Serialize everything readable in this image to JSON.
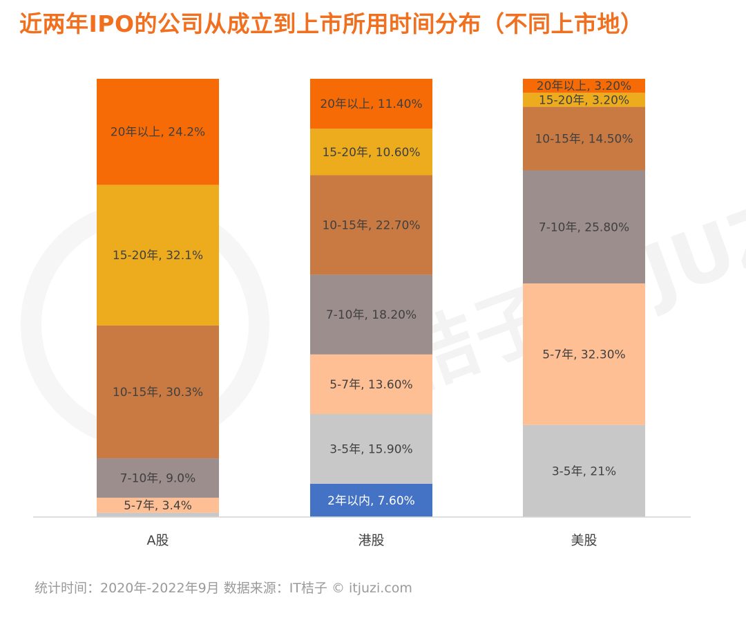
{
  "title": "近两年IPO的公司从成立到上市所用时间分布（不同上市地）",
  "footer": "统计时间：2020年-2022年9月    数据来源：IT桔子 © itjuzi.com",
  "watermark_text": "IT桔子 ITJUZI.COM",
  "colors": {
    "title": "#f07020",
    "lt2": "#4472c4",
    "3to5": "#c8c8c8",
    "5to7": "#ffbf94",
    "7to10": "#9c8e8c",
    "10to15": "#c97a42",
    "15to20": "#ecac1e",
    "gt20": "#f76b06"
  },
  "chart_data": {
    "type": "bar",
    "stacked": true,
    "categories": [
      "A股",
      "港股",
      "美股"
    ],
    "ylim": [
      0,
      100
    ],
    "grid": false,
    "legend": "none",
    "stacks": [
      {
        "category": "A股",
        "segments": [
          {
            "key": "3to5",
            "value": 1.0,
            "label": ""
          },
          {
            "key": "5to7",
            "value": 3.4,
            "label": "5-7年, 3.4%"
          },
          {
            "key": "7to10",
            "value": 9.0,
            "label": "7-10年, 9.0%"
          },
          {
            "key": "10to15",
            "value": 30.3,
            "label": "10-15年, 30.3%"
          },
          {
            "key": "15to20",
            "value": 32.1,
            "label": "15-20年, 32.1%"
          },
          {
            "key": "gt20",
            "value": 24.2,
            "label": "20年以上, 24.2%"
          }
        ]
      },
      {
        "category": "港股",
        "segments": [
          {
            "key": "lt2",
            "value": 7.6,
            "label": "2年以内, 7.60%"
          },
          {
            "key": "3to5",
            "value": 15.9,
            "label": "3-5年, 15.90%"
          },
          {
            "key": "5to7",
            "value": 13.6,
            "label": "5-7年, 13.60%"
          },
          {
            "key": "7to10",
            "value": 18.2,
            "label": "7-10年, 18.20%"
          },
          {
            "key": "10to15",
            "value": 22.7,
            "label": "10-15年, 22.70%"
          },
          {
            "key": "15to20",
            "value": 10.6,
            "label": "15-20年, 10.60%"
          },
          {
            "key": "gt20",
            "value": 11.4,
            "label": "20年以上, 11.40%"
          }
        ]
      },
      {
        "category": "美股",
        "segments": [
          {
            "key": "3to5",
            "value": 21,
            "label": "3-5年, 21%"
          },
          {
            "key": "5to7",
            "value": 32.3,
            "label": "5-7年, 32.30%"
          },
          {
            "key": "7to10",
            "value": 25.8,
            "label": "7-10年, 25.80%"
          },
          {
            "key": "10to15",
            "value": 14.5,
            "label": "10-15年, 14.50%"
          },
          {
            "key": "15to20",
            "value": 3.2,
            "label": "15-20年, 3.20%"
          },
          {
            "key": "gt20",
            "value": 3.2,
            "label": "20年以上, 3.20%"
          }
        ]
      }
    ]
  }
}
